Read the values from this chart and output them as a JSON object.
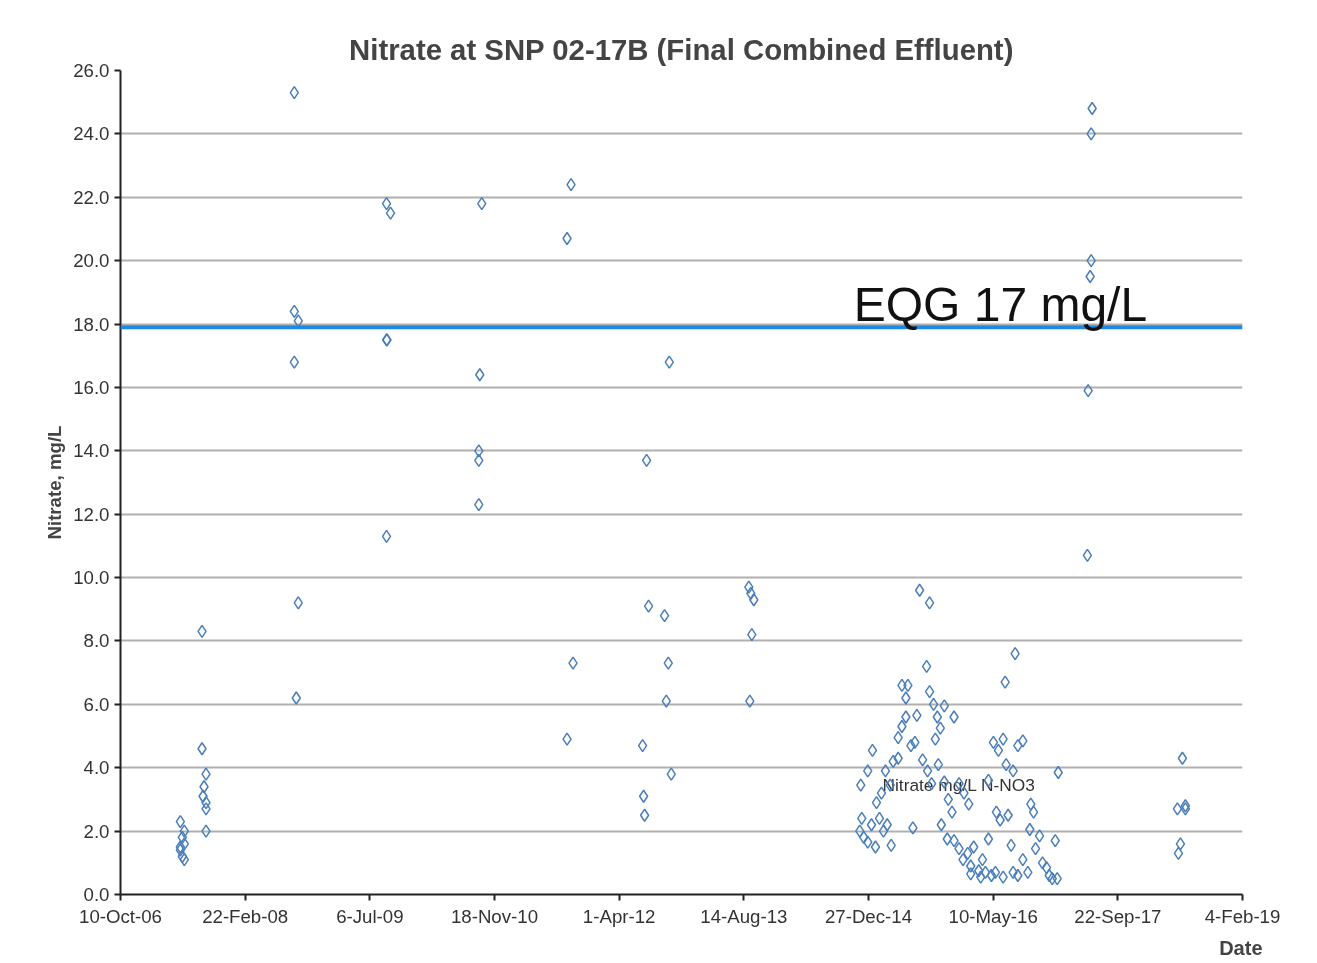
{
  "chart_data": {
    "type": "scatter",
    "title": "Nitrate at SNP 02-17B (Final Combined Effluent)",
    "xlabel": "Date",
    "ylabel": "Nitrate, mg/L",
    "xlim": [
      "2006-10-10",
      "2019-02-04"
    ],
    "xticks": [
      {
        "value": "2006-10-10",
        "label": "10-Oct-06"
      },
      {
        "value": "2008-02-22",
        "label": "22-Feb-08"
      },
      {
        "value": "2009-07-06",
        "label": "6-Jul-09"
      },
      {
        "value": "2010-11-18",
        "label": "18-Nov-10"
      },
      {
        "value": "2012-04-01",
        "label": "1-Apr-12"
      },
      {
        "value": "2013-08-14",
        "label": "14-Aug-13"
      },
      {
        "value": "2014-12-27",
        "label": "27-Dec-14"
      },
      {
        "value": "2016-05-10",
        "label": "10-May-16"
      },
      {
        "value": "2017-09-22",
        "label": "22-Sep-17"
      },
      {
        "value": "2019-02-04",
        "label": "4-Feb-19"
      }
    ],
    "ylim": [
      0,
      26
    ],
    "yticks": [
      {
        "value": 0,
        "label": "0.0"
      },
      {
        "value": 2,
        "label": "2.0"
      },
      {
        "value": 4,
        "label": "4.0"
      },
      {
        "value": 6,
        "label": "6.0"
      },
      {
        "value": 8,
        "label": "8.0"
      },
      {
        "value": 10,
        "label": "10.0"
      },
      {
        "value": 12,
        "label": "12.0"
      },
      {
        "value": 14,
        "label": "14.0"
      },
      {
        "value": 16,
        "label": "16.0"
      },
      {
        "value": 18,
        "label": "18.0"
      },
      {
        "value": 20,
        "label": "20.0"
      },
      {
        "value": 22,
        "label": "22.0"
      },
      {
        "value": 24,
        "label": "24.0"
      },
      {
        "value": 26,
        "label": "26.0"
      }
    ],
    "grid": "y",
    "marker": "diamond",
    "ref_lines": [
      {
        "axis": "y",
        "value": 17.9,
        "label": "EQG 17 mg/L",
        "color": "#1e88e5"
      }
    ],
    "annotations": [
      {
        "text": "Nitrate mg/L N-NO3",
        "x": "2015-12-25",
        "y": 3.45
      }
    ],
    "series": [
      {
        "color": "#4a7ebb",
        "x": [
          "2007-06-07",
          "2007-06-23",
          "2007-06-15",
          "2007-06-23",
          "2007-06-07",
          "2007-06-15",
          "2007-06-23",
          "2007-06-07",
          "2007-09-02",
          "2007-09-02",
          "2007-09-18",
          "2007-09-10",
          "2007-09-06",
          "2007-09-18",
          "2007-09-18",
          "2007-09-18",
          "2008-09-06",
          "2008-09-06",
          "2008-09-22",
          "2008-09-06",
          "2008-09-22",
          "2008-09-14",
          "2009-09-11",
          "2009-09-27",
          "2009-09-11",
          "2009-09-13",
          "2009-09-11",
          "2010-09-28",
          "2010-09-20",
          "2010-09-16",
          "2010-09-16",
          "2010-09-16",
          "2011-09-21",
          "2011-09-05",
          "2011-09-29",
          "2011-09-05",
          "2012-07-20",
          "2012-07-28",
          "2012-09-30",
          "2012-10-15",
          "2012-10-07",
          "2012-07-04",
          "2012-10-27",
          "2012-07-08",
          "2012-07-12",
          "2012-10-19",
          "2013-09-03",
          "2013-09-11",
          "2013-09-23",
          "2013-09-15",
          "2013-09-07",
          "2017-06-11",
          "2017-06-07",
          "2017-06-07",
          "2017-06-03",
          "2017-05-26",
          "2017-05-23",
          "2018-06-08",
          "2018-06-20",
          "2018-05-19",
          "2018-06-20",
          "2018-05-31",
          "2018-05-23",
          "2014-11-30",
          "2014-11-22",
          "2014-12-08",
          "2014-12-24",
          "2015-01-08",
          "2015-01-24",
          "2015-02-09",
          "2015-02-25",
          "2015-03-12",
          "2015-03-28",
          "2014-11-26",
          "2014-12-24",
          "2015-01-12",
          "2015-01-28",
          "2015-02-17",
          "2015-03-05",
          "2015-03-24",
          "2015-04-05",
          "2015-04-25",
          "2015-04-25",
          "2015-05-10",
          "2015-05-26",
          "2015-06-03",
          "2015-05-10",
          "2015-05-26",
          "2015-06-15",
          "2015-07-01",
          "2015-07-09",
          "2015-06-23",
          "2015-07-20",
          "2015-08-29",
          "2015-08-17",
          "2015-08-29",
          "2015-09-14",
          "2015-09-29",
          "2015-10-27",
          "2015-10-11",
          "2015-09-21",
          "2015-08-01",
          "2015-08-21",
          "2015-09-06",
          "2015-10-03",
          "2015-10-27",
          "2015-11-12",
          "2015-11-27",
          "2015-10-15",
          "2015-12-05",
          "2015-11-08",
          "2015-12-05",
          "2015-12-25",
          "2016-01-10",
          "2016-01-29",
          "2016-02-10",
          "2016-02-22",
          "2016-03-13",
          "2016-03-28",
          "2016-04-09",
          "2016-04-21",
          "2016-05-03",
          "2016-05-19",
          "2015-12-25",
          "2016-01-14",
          "2016-02-02",
          "2016-04-21",
          "2016-05-11",
          "2016-05-31",
          "2016-06-19",
          "2016-06-27",
          "2016-05-23",
          "2016-06-07",
          "2016-07-01",
          "2016-07-09",
          "2016-07-21",
          "2016-08-06",
          "2016-08-17",
          "2016-09-06",
          "2016-07-29",
          "2016-09-06",
          "2016-09-26",
          "2016-10-08",
          "2016-10-19",
          "2016-10-04",
          "2016-10-27",
          "2016-11-12",
          "2016-11-24",
          "2016-12-10",
          "2016-12-21",
          "2017-01-02",
          "2017-01-22",
          "2017-01-14",
          "2017-01-26",
          "2016-07-29",
          "2016-08-17",
          "2016-06-19",
          "2016-03-21",
          "2016-02-10"
        ],
        "values": [
          2.3,
          2.0,
          1.8,
          1.6,
          1.4,
          1.2,
          1.1,
          1.5,
          8.3,
          4.6,
          3.8,
          3.4,
          3.1,
          2.9,
          2.7,
          2.0,
          25.3,
          18.4,
          18.1,
          16.8,
          9.2,
          6.2,
          21.8,
          21.5,
          17.5,
          17.5,
          11.3,
          21.8,
          16.4,
          14.0,
          13.7,
          12.3,
          22.4,
          20.7,
          7.3,
          4.9,
          13.7,
          9.1,
          8.8,
          7.3,
          6.1,
          4.7,
          3.8,
          3.1,
          2.5,
          16.8,
          9.7,
          9.5,
          9.3,
          8.2,
          6.1,
          24.8,
          24.0,
          20.0,
          19.5,
          15.9,
          10.7,
          4.3,
          2.8,
          2.7,
          2.7,
          1.6,
          1.3,
          2.4,
          2.0,
          1.8,
          1.65,
          2.2,
          1.5,
          2.4,
          2.0,
          2.2,
          1.55,
          3.45,
          3.9,
          4.55,
          2.9,
          3.2,
          3.9,
          3.45,
          4.2,
          4.3,
          4.95,
          5.3,
          5.6,
          6.6,
          6.6,
          6.2,
          4.7,
          4.8,
          5.65,
          2.1,
          9.6,
          9.2,
          7.2,
          6.4,
          6.0,
          5.6,
          5.95,
          5.25,
          4.9,
          4.25,
          3.9,
          3.5,
          4.1,
          3.55,
          3.0,
          2.6,
          2.2,
          5.6,
          1.75,
          1.7,
          1.45,
          1.1,
          1.3,
          0.9,
          1.5,
          0.75,
          1.1,
          0.7,
          1.75,
          0.6,
          0.7,
          3.5,
          3.2,
          2.85,
          3.6,
          4.8,
          4.55,
          4.9,
          6.7,
          2.6,
          2.35,
          4.1,
          2.5,
          1.55,
          7.6,
          4.7,
          4.85,
          3.9,
          1.1,
          0.7,
          2.85,
          2.6,
          2.05,
          1.45,
          1.85,
          1.0,
          0.85,
          0.6,
          0.5,
          0.5,
          1.7,
          3.85,
          0.7,
          0.6,
          0.55,
          0.55,
          0.65
        ]
      }
    ]
  }
}
